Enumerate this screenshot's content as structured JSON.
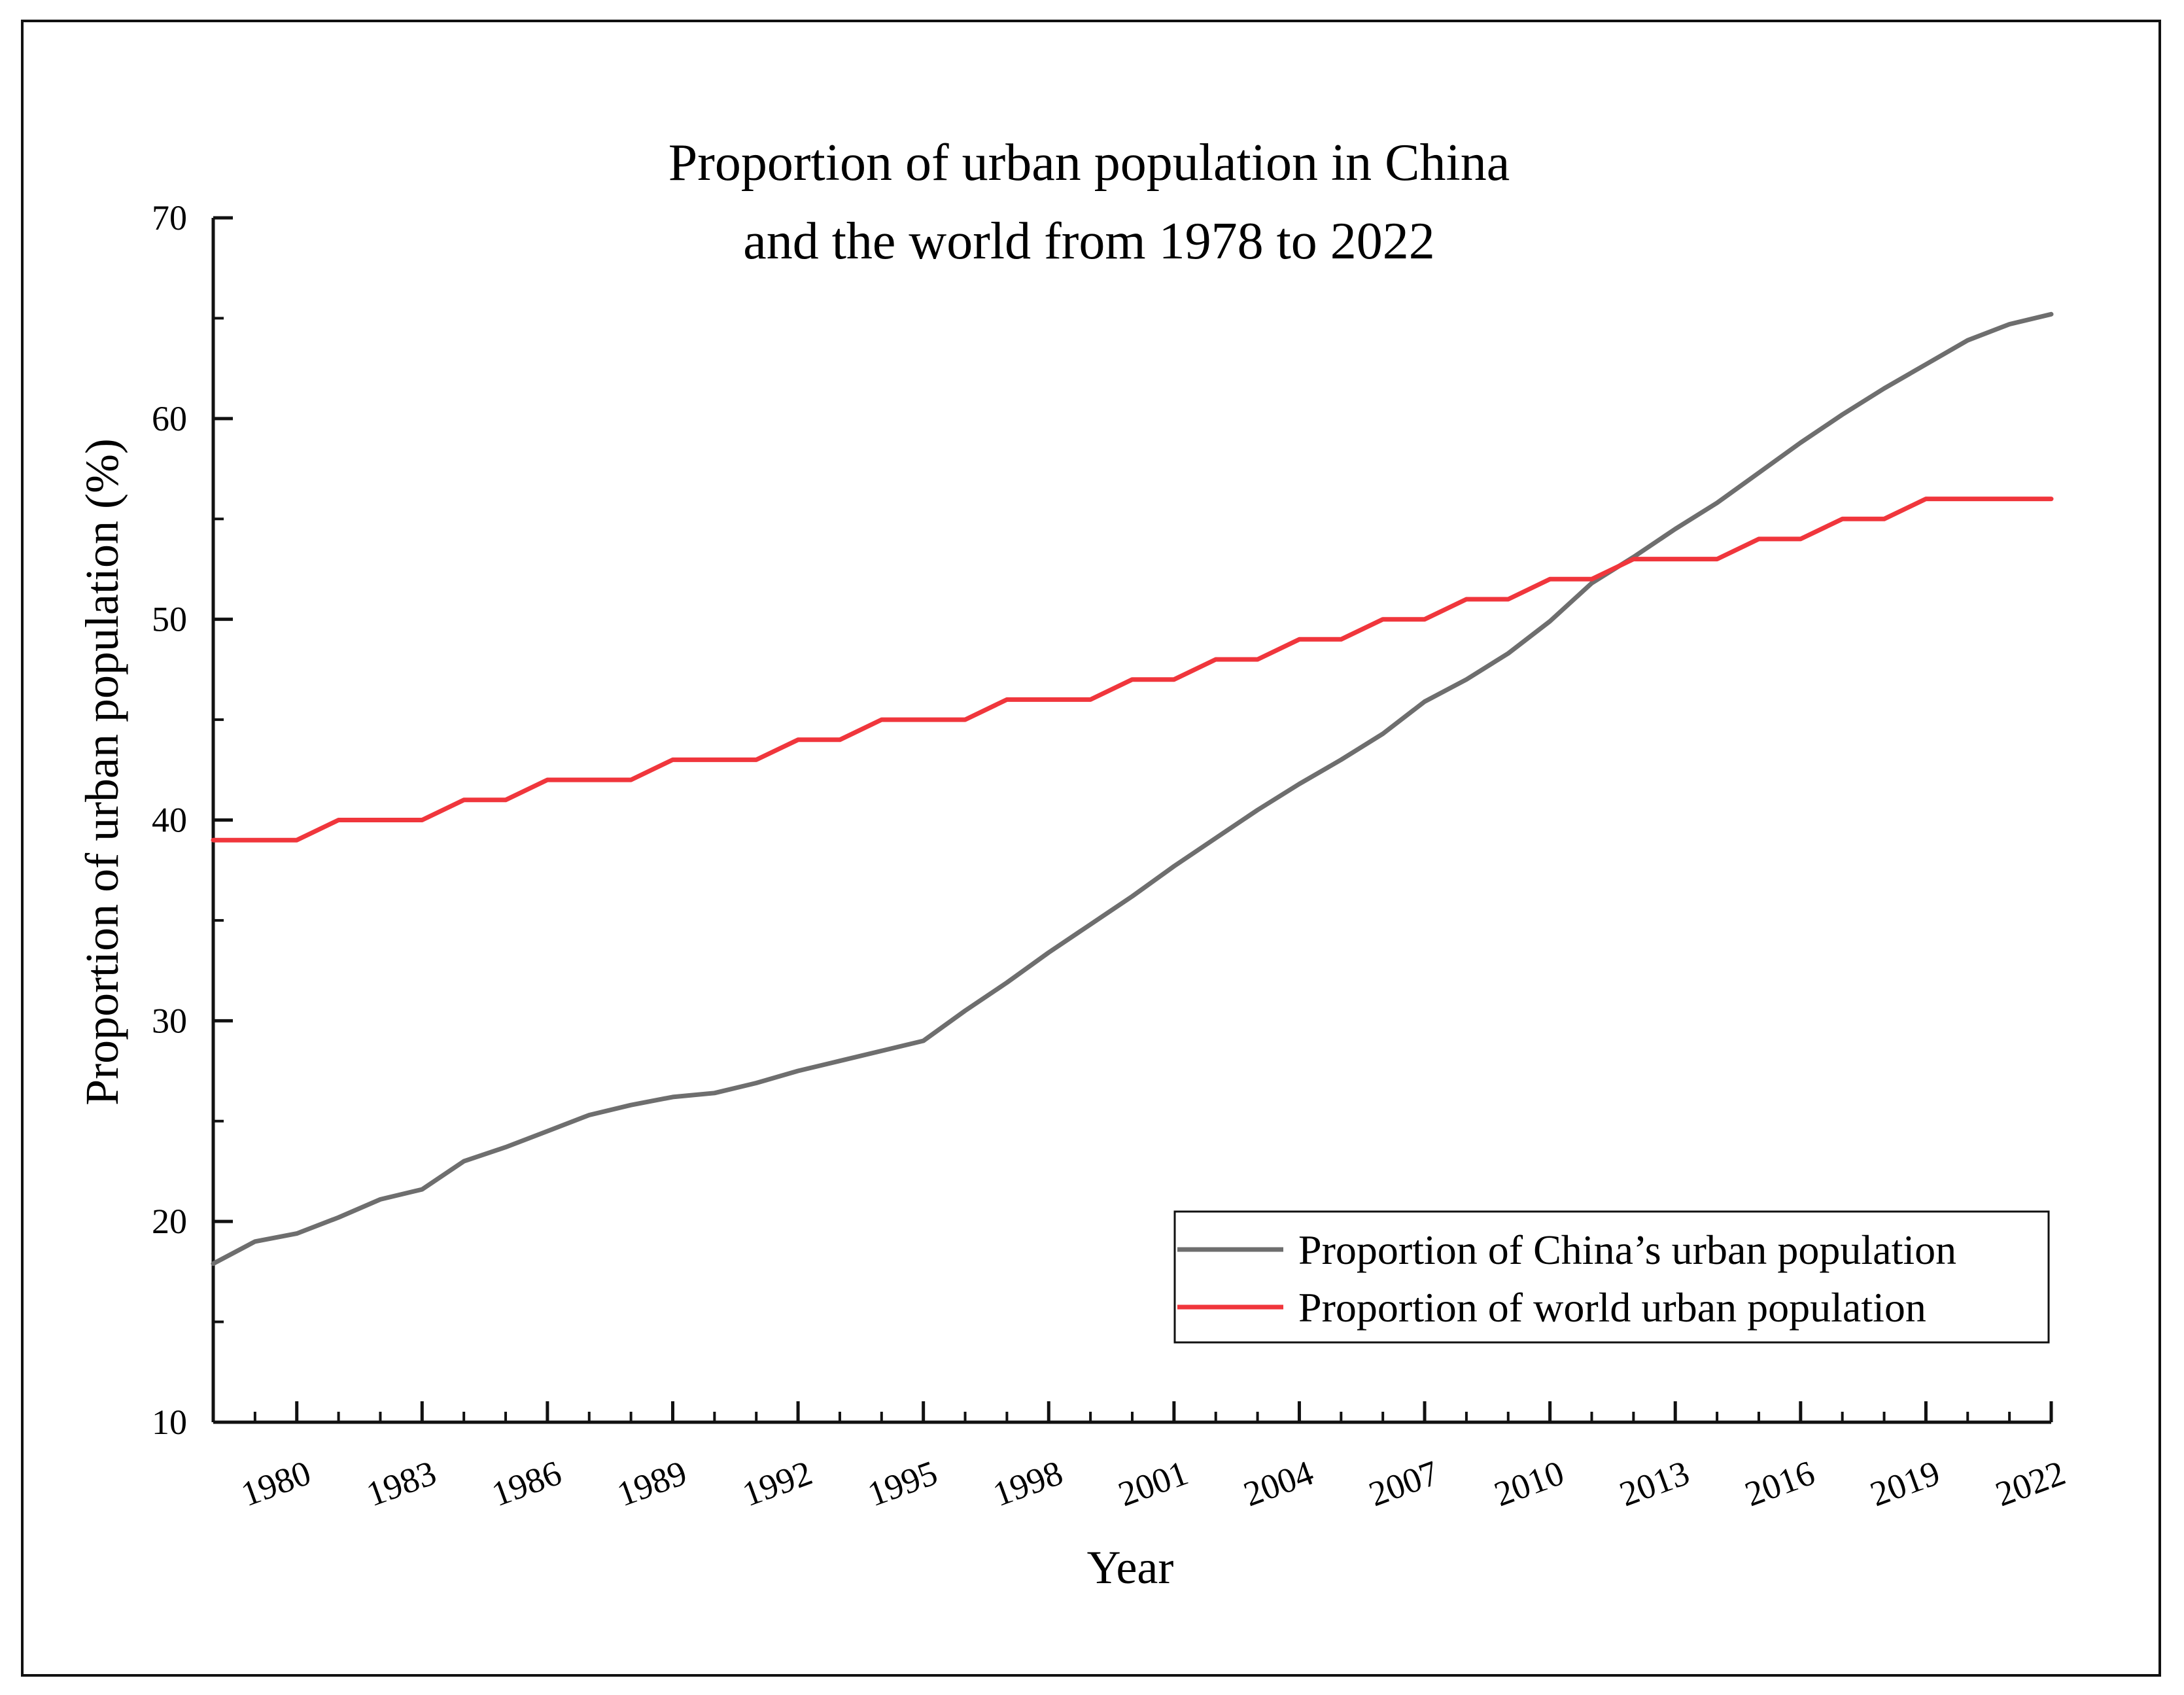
{
  "chart_data": {
    "type": "line",
    "title_lines": [
      "Proportion of urban population in China",
      "and the world from 1978 to 2022"
    ],
    "xlabel": "Year",
    "ylabel": "Proportion of urban population (%)",
    "xlim": [
      1978,
      2022
    ],
    "ylim": [
      10,
      70
    ],
    "y_ticks": [
      10,
      20,
      30,
      40,
      50,
      60,
      70
    ],
    "x_ticks": [
      1980,
      1983,
      1986,
      1989,
      1992,
      1995,
      1998,
      2001,
      2004,
      2007,
      2010,
      2013,
      2016,
      2019,
      2022
    ],
    "x_tick_labels": [
      "1980",
      "1983",
      "1986",
      "1989",
      "1992",
      "1995",
      "1998",
      "2001",
      "2004",
      "2007",
      "2010",
      "2013",
      "2016",
      "2019",
      "2022"
    ],
    "y_tick_labels": [
      "10",
      "20",
      "30",
      "40",
      "50",
      "60",
      "70"
    ],
    "legend_position": "lower-right",
    "x": [
      1978,
      1979,
      1980,
      1981,
      1982,
      1983,
      1984,
      1985,
      1986,
      1987,
      1988,
      1989,
      1990,
      1991,
      1992,
      1993,
      1994,
      1995,
      1996,
      1997,
      1998,
      1999,
      2000,
      2001,
      2002,
      2003,
      2004,
      2005,
      2006,
      2007,
      2008,
      2009,
      2010,
      2011,
      2012,
      2013,
      2014,
      2015,
      2016,
      2017,
      2018,
      2019,
      2020,
      2021,
      2022
    ],
    "series": [
      {
        "name": "Proportion of China’s urban population",
        "color": "#6e6e6e",
        "values": [
          17.9,
          19.0,
          19.4,
          20.2,
          21.1,
          21.6,
          23.0,
          23.7,
          24.5,
          25.3,
          25.8,
          26.2,
          26.4,
          26.9,
          27.5,
          28.0,
          28.5,
          29.0,
          30.5,
          31.9,
          33.4,
          34.8,
          36.2,
          37.7,
          39.1,
          40.5,
          41.8,
          43.0,
          44.3,
          45.9,
          47.0,
          48.3,
          49.9,
          51.8,
          53.1,
          54.5,
          55.8,
          57.3,
          58.8,
          60.2,
          61.5,
          62.7,
          63.9,
          64.7,
          65.2
        ]
      },
      {
        "name": "Proportion of world urban population",
        "color": "#f0363c",
        "values": [
          39,
          39,
          39,
          40,
          40,
          40,
          41,
          41,
          42,
          42,
          42,
          43,
          43,
          43,
          44,
          44,
          45,
          45,
          45,
          46,
          46,
          46,
          47,
          47,
          48,
          48,
          49,
          49,
          50,
          50,
          51,
          51,
          52,
          52,
          53,
          53,
          53,
          54,
          54,
          55,
          55,
          56,
          56,
          56,
          56
        ]
      }
    ]
  }
}
